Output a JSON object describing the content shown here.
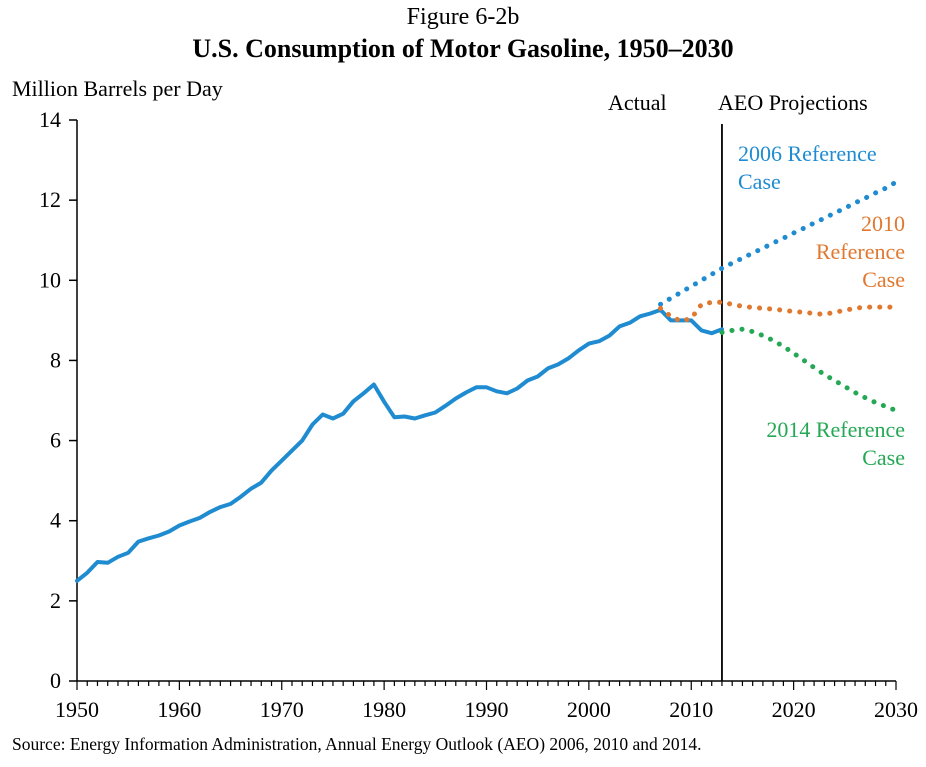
{
  "figure_label": "Figure 6-2b",
  "title": "U.S. Consumption of Motor Gasoline, 1950–2030",
  "y_axis_label": "Million Barrels per Day",
  "phase_actual": "Actual",
  "phase_projections": "AEO Projections",
  "source": "Source: Energy Information Administration, Annual Energy Outlook (AEO) 2006, 2010 and 2014.",
  "colors": {
    "actual": "#1f8bd0",
    "ref2006": "#1f8bd0",
    "ref2010": "#e07830",
    "ref2014": "#25a855",
    "divider": "#000000"
  },
  "case_labels": {
    "ref2006": [
      "2006 Reference",
      "Case"
    ],
    "ref2010": [
      "2010",
      "Reference",
      "Case"
    ],
    "ref2014": [
      "2014 Reference",
      "Case"
    ]
  },
  "chart_data": {
    "type": "line",
    "title": "U.S. Consumption of Motor Gasoline, 1950–2030",
    "ylabel": "Million Barrels per Day",
    "xlabel": "",
    "xlim": [
      1950,
      2030
    ],
    "ylim": [
      0,
      14
    ],
    "x_ticks": [
      1950,
      1960,
      1970,
      1980,
      1990,
      2000,
      2010,
      2020,
      2030
    ],
    "y_ticks": [
      0,
      2,
      4,
      6,
      8,
      10,
      12,
      14
    ],
    "grid": false,
    "divider_year": 2013,
    "series": [
      {
        "key": "actual",
        "style": "solid",
        "x": [
          1950,
          1951,
          1952,
          1953,
          1954,
          1955,
          1956,
          1957,
          1958,
          1959,
          1960,
          1961,
          1962,
          1963,
          1964,
          1965,
          1966,
          1967,
          1968,
          1969,
          1970,
          1971,
          1972,
          1973,
          1974,
          1975,
          1976,
          1977,
          1978,
          1979,
          1980,
          1981,
          1982,
          1983,
          1984,
          1985,
          1986,
          1987,
          1988,
          1989,
          1990,
          1991,
          1992,
          1993,
          1994,
          1995,
          1996,
          1997,
          1998,
          1999,
          2000,
          2001,
          2002,
          2003,
          2004,
          2005,
          2006,
          2007,
          2008,
          2009,
          2010,
          2011,
          2012,
          2013
        ],
        "y": [
          2.5,
          2.7,
          2.97,
          2.95,
          3.1,
          3.2,
          3.48,
          3.56,
          3.63,
          3.73,
          3.88,
          3.98,
          4.07,
          4.22,
          4.34,
          4.42,
          4.6,
          4.8,
          4.95,
          5.25,
          5.5,
          5.75,
          6.0,
          6.4,
          6.65,
          6.55,
          6.67,
          6.98,
          7.18,
          7.4,
          6.97,
          6.58,
          6.6,
          6.55,
          6.63,
          6.7,
          6.87,
          7.05,
          7.2,
          7.33,
          7.33,
          7.23,
          7.18,
          7.3,
          7.5,
          7.6,
          7.8,
          7.9,
          8.05,
          8.25,
          8.42,
          8.48,
          8.62,
          8.85,
          8.94,
          9.1,
          9.17,
          9.26,
          9.0,
          9.0,
          9.0,
          8.75,
          8.68,
          8.78
        ]
      },
      {
        "key": "ref2006",
        "style": "dotted",
        "x": [
          2007,
          2008,
          2009,
          2010,
          2011,
          2012,
          2013,
          2014,
          2015,
          2016,
          2017,
          2018,
          2019,
          2020,
          2021,
          2022,
          2023,
          2024,
          2025,
          2026,
          2027,
          2028,
          2029,
          2030
        ],
        "y": [
          9.4,
          9.55,
          9.7,
          9.85,
          10.0,
          10.15,
          10.3,
          10.43,
          10.55,
          10.68,
          10.8,
          10.93,
          11.05,
          11.18,
          11.3,
          11.43,
          11.55,
          11.68,
          11.8,
          11.93,
          12.05,
          12.18,
          12.3,
          12.45
        ]
      },
      {
        "key": "ref2010",
        "style": "dotted",
        "x": [
          2007,
          2008,
          2009,
          2010,
          2011,
          2012,
          2013,
          2014,
          2015,
          2016,
          2017,
          2018,
          2019,
          2020,
          2021,
          2022,
          2023,
          2024,
          2025,
          2026,
          2027,
          2028,
          2029,
          2030
        ],
        "y": [
          9.3,
          9.1,
          8.98,
          9.05,
          9.4,
          9.45,
          9.45,
          9.4,
          9.35,
          9.32,
          9.3,
          9.28,
          9.25,
          9.22,
          9.2,
          9.17,
          9.15,
          9.2,
          9.25,
          9.3,
          9.33,
          9.33,
          9.33,
          9.33
        ]
      },
      {
        "key": "ref2014",
        "style": "dotted",
        "x": [
          2013,
          2014,
          2015,
          2016,
          2017,
          2018,
          2019,
          2020,
          2021,
          2022,
          2023,
          2024,
          2025,
          2026,
          2027,
          2028,
          2029,
          2030
        ],
        "y": [
          8.7,
          8.75,
          8.78,
          8.72,
          8.62,
          8.5,
          8.35,
          8.18,
          8.0,
          7.82,
          7.65,
          7.5,
          7.35,
          7.2,
          7.07,
          6.95,
          6.85,
          6.75
        ]
      }
    ]
  }
}
